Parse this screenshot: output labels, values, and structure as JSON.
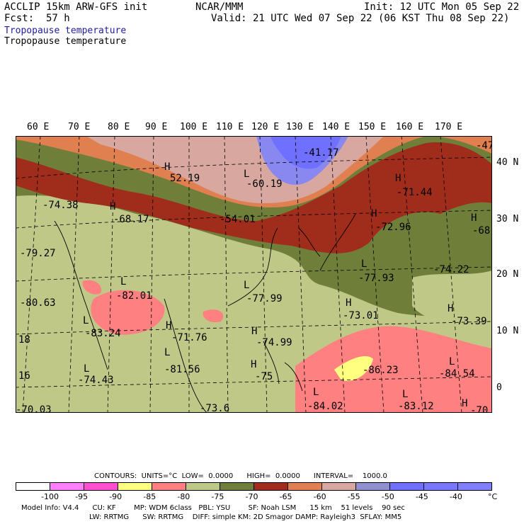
{
  "header": {
    "model": "ACCLIP 15km ARW-GFS init",
    "fcst_label": "Fcst:",
    "fcst_value": "57 h",
    "center": "NCAR/MMM",
    "init": "Init: 12 UTC Mon 05 Sep 22",
    "valid": "Valid: 21 UTC Wed 07 Sep 22 (06 KST Thu 08 Sep 22)",
    "field_colored": "Tropopause temperature",
    "field_contour": "Tropopause temperature"
  },
  "axes": {
    "lon_labels": [
      "60 E",
      "70 E",
      "80 E",
      "90 E",
      "100 E",
      "110 E",
      "120 E",
      "130 E",
      "140 E",
      "150 E",
      "160 E",
      "170 E"
    ],
    "lat_labels": [
      "40 N",
      "30 N",
      "20 N",
      "10 N",
      "0"
    ]
  },
  "map": {
    "labels": [
      {
        "t": "-41.17"
      },
      {
        "t": "-47"
      },
      {
        "t": "H"
      },
      {
        "t": "52.19"
      },
      {
        "t": "L"
      },
      {
        "t": "-60.19"
      },
      {
        "t": "H"
      },
      {
        "t": "-71.44"
      },
      {
        "t": "-74.38"
      },
      {
        "t": "H"
      },
      {
        "t": "-68.17"
      },
      {
        "t": "-54.01"
      },
      {
        "t": "H"
      },
      {
        "t": "H"
      },
      {
        "t": "-72.96"
      },
      {
        "t": "-68"
      },
      {
        "t": "-79.27"
      },
      {
        "t": "L"
      },
      {
        "t": "-77.93"
      },
      {
        "t": "-74.22"
      },
      {
        "t": "L"
      },
      {
        "t": "-82.01"
      },
      {
        "t": "L"
      },
      {
        "t": "-77.99"
      },
      {
        "t": "-80.63"
      },
      {
        "t": "H"
      },
      {
        "t": "-73.01"
      },
      {
        "t": "H"
      },
      {
        "t": "-73.39"
      },
      {
        "t": "L"
      },
      {
        "t": "-83.24"
      },
      {
        "t": "H"
      },
      {
        "t": "-71.76"
      },
      {
        "t": "H"
      },
      {
        "t": "-74.99"
      },
      {
        "t": "18"
      },
      {
        "t": "L"
      },
      {
        "t": "L"
      },
      {
        "t": "-81.56"
      },
      {
        "t": "H"
      },
      {
        "t": "-86.23"
      },
      {
        "t": "-84.54"
      },
      {
        "t": "16"
      },
      {
        "t": "L"
      },
      {
        "t": "-74.43"
      },
      {
        "t": "-75"
      },
      {
        "t": "L"
      },
      {
        "t": "L"
      },
      {
        "t": "-84.02"
      },
      {
        "t": "-83.12"
      },
      {
        "t": "H"
      },
      {
        "t": "-70.03"
      },
      {
        "t": "-73.6"
      },
      {
        "t": "-70"
      }
    ]
  },
  "colorbar": {
    "contours_info": "CONTOURS:  UNITS=°C  LOW=  0.0000      HIGH=  0.0000      INTERVAL=    1000.0",
    "colors": [
      "#ffffff",
      "#ff80ff",
      "#ff50d0",
      "#ffff80",
      "#ff8080",
      "#c0c888",
      "#6f7f3a",
      "#a02c1c",
      "#e08050",
      "#d8a8a0",
      "#9090d0",
      "#7070ff",
      "#7878ff",
      "#7f7fff"
    ],
    "ticks": [
      "-100",
      "-95",
      "-90",
      "-85",
      "-80",
      "-75",
      "-70",
      "-65",
      "-60",
      "-55",
      "-50",
      "-45",
      "-40",
      "°C"
    ]
  },
  "footer": {
    "line1": "Model Info: V4.4      CU: KF        MP: WDM 6class   PBL: YSU        SF: Noah LSM      15 km    51 levels    90 sec",
    "line2": "LW: RRTMG      SW: RRTMG    DIFF: simple KM: 2D Smagor DAMP: Rayleigh3  SFLAY: MM5"
  }
}
